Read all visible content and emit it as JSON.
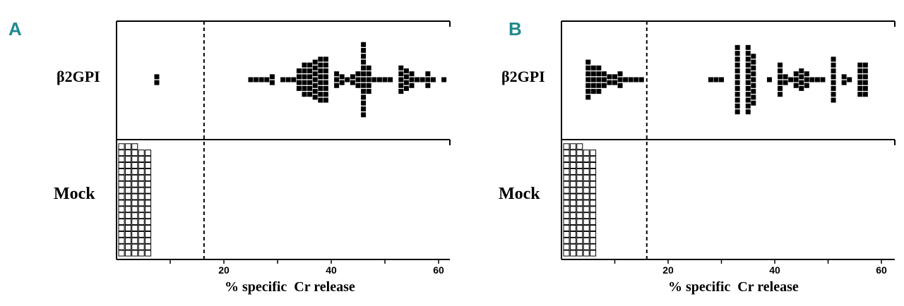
{
  "chart_data": [
    {
      "type": "scatter",
      "panel": "A",
      "rows": [
        "β2GPI",
        "Mock"
      ],
      "xlabel": "% specific  Cr release",
      "xticks": [
        20,
        40,
        60
      ],
      "xlim": [
        0,
        62
      ],
      "cutoff": 16.3,
      "series": [
        {
          "name": "β2GPI",
          "fill": "#000000",
          "values": [
            7.5,
            7.5,
            25,
            26,
            27,
            28,
            29,
            29,
            31,
            32,
            33,
            34,
            34,
            34,
            34,
            35,
            35,
            35,
            35,
            35,
            35,
            36,
            36,
            36,
            36,
            36,
            36,
            37,
            37,
            37,
            37,
            37,
            37,
            37,
            38,
            38,
            38,
            38,
            38,
            38,
            38,
            38,
            39,
            39,
            39,
            39,
            39,
            39,
            39,
            39,
            41,
            41,
            41,
            42,
            42,
            43,
            44,
            44,
            45,
            45,
            45,
            46,
            46,
            46,
            46,
            46,
            46,
            46,
            46,
            46,
            46,
            46,
            46,
            46,
            47,
            47,
            47,
            47,
            47,
            48,
            49,
            50,
            51,
            53,
            53,
            53,
            53,
            53,
            54,
            54,
            54,
            54,
            55,
            55,
            55,
            56,
            57,
            58,
            58,
            58,
            59,
            61
          ]
        },
        {
          "name": "Mock",
          "fill": "#ffffff",
          "counts": [
            18,
            18,
            18,
            17,
            17
          ]
        }
      ]
    },
    {
      "type": "scatter",
      "panel": "B",
      "rows": [
        "β2GPI",
        "Mock"
      ],
      "xlabel": "% specific  Cr release",
      "xticks": [
        20,
        40,
        60
      ],
      "xlim": [
        0,
        61
      ],
      "cutoff": 16,
      "series": [
        {
          "name": "β2GPI",
          "fill": "#000000",
          "values": [
            5,
            5,
            5,
            5,
            5,
            5,
            5,
            6,
            6,
            6,
            6,
            6,
            7,
            7,
            7,
            7,
            7,
            8,
            8,
            8,
            9,
            9,
            10,
            10,
            11,
            11,
            11,
            12,
            13,
            14,
            15,
            28,
            29,
            30,
            33,
            33,
            33,
            33,
            33,
            33,
            33,
            33,
            33,
            33,
            33,
            33,
            35,
            35,
            35,
            35,
            35,
            35,
            35,
            35,
            35,
            35,
            35,
            35,
            36,
            36,
            36,
            36,
            36,
            36,
            36,
            36,
            36,
            39,
            41,
            41,
            41,
            41,
            41,
            41,
            42,
            42,
            43,
            44,
            44,
            44,
            45,
            45,
            45,
            45,
            46,
            46,
            46,
            47,
            48,
            49,
            51,
            51,
            51,
            51,
            51,
            51,
            51,
            51,
            53,
            53,
            54,
            56,
            56,
            56,
            56,
            56,
            56,
            57,
            57,
            57,
            57,
            57,
            57
          ]
        },
        {
          "name": "Mock",
          "fill": "#ffffff",
          "counts": [
            18,
            18,
            18,
            17,
            17
          ]
        }
      ]
    }
  ]
}
